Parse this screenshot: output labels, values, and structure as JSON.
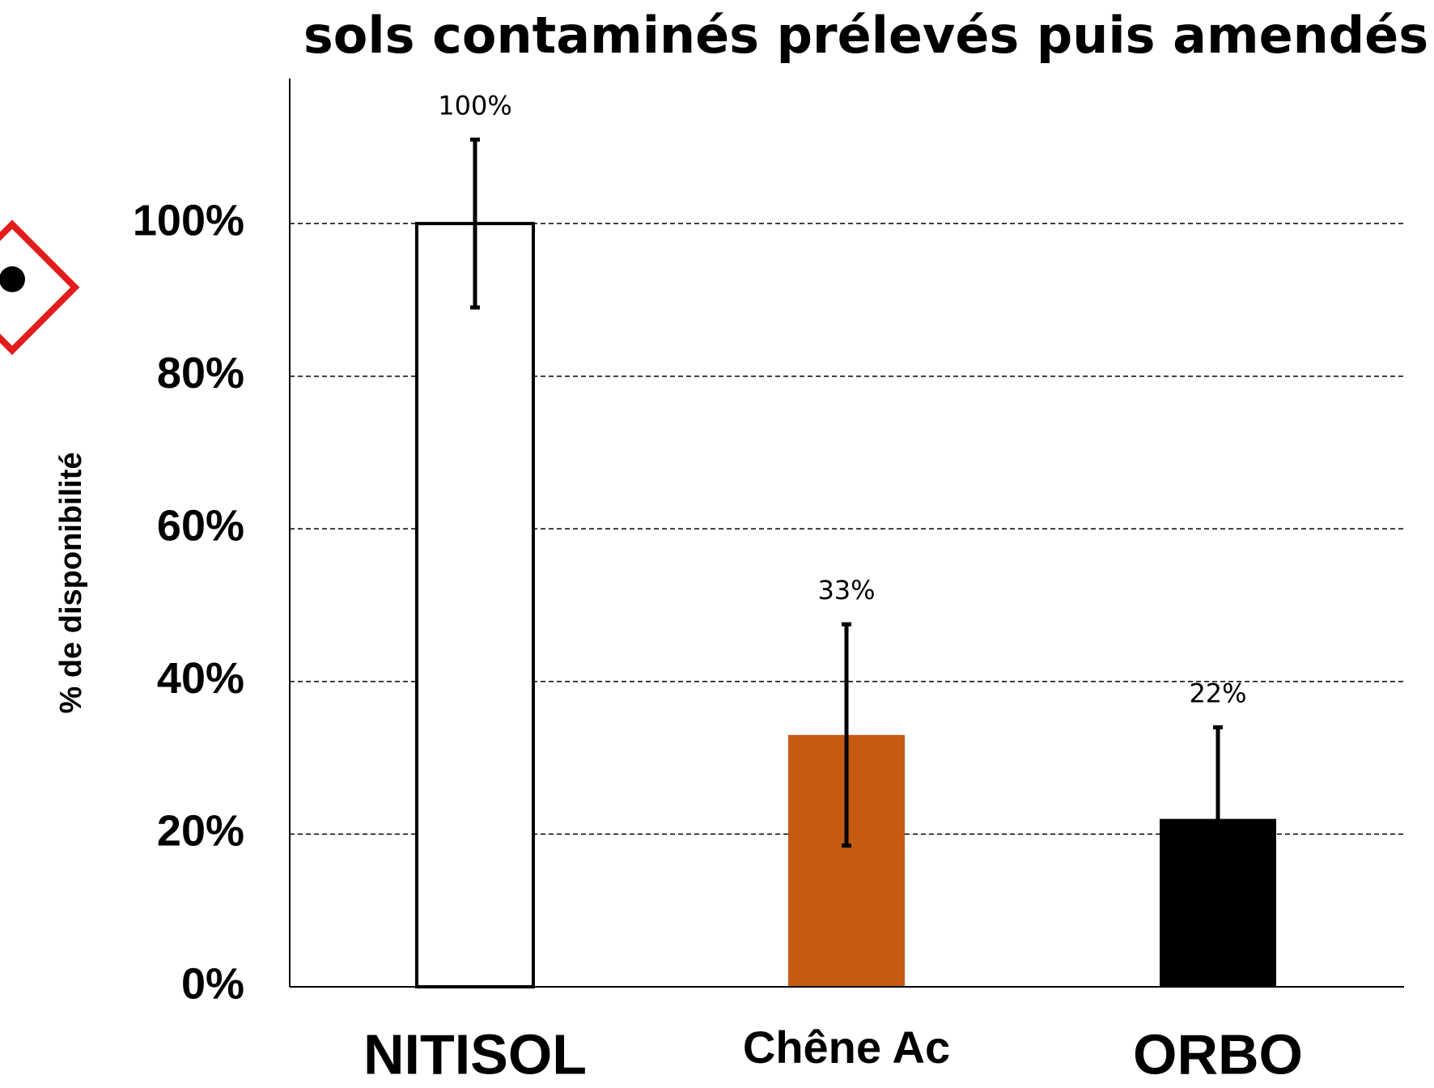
{
  "chart_data": {
    "type": "bar",
    "title": "sols contaminés prélevés puis amendés",
    "y_label": "% de disponibilité",
    "categories": [
      "NITISOL",
      "Chêne Ac",
      "ORBO"
    ],
    "values": [
      100,
      33,
      22
    ],
    "value_labels": [
      "100%",
      "33%",
      "22%"
    ],
    "errors": [
      11,
      14.5,
      12
    ],
    "colors": [
      "#ffffff",
      "#c55a11",
      "#000000"
    ],
    "ylim": [
      0,
      119
    ],
    "yticks": [
      {
        "value": 0,
        "label": "0%"
      },
      {
        "value": 20,
        "label": "20%"
      },
      {
        "value": 40,
        "label": "40%"
      },
      {
        "value": 60,
        "label": "60%"
      },
      {
        "value": 80,
        "label": "80%"
      },
      {
        "value": 100,
        "label": "100%"
      }
    ],
    "grid": true
  }
}
